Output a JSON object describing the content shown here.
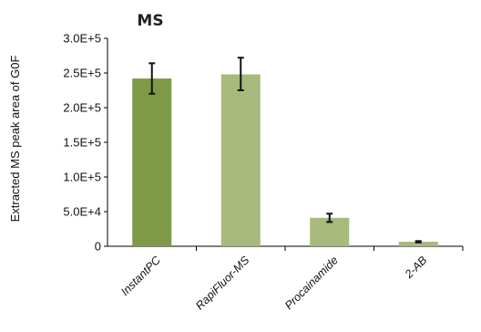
{
  "chart_data": {
    "type": "bar",
    "title": "MS",
    "ylabel": "Extracted MS peak area of G0F",
    "xlabel": "",
    "categories": [
      "InstantPC",
      "RapiFluor-MS",
      "Procainamide",
      "2-AB"
    ],
    "values": [
      242000,
      248000,
      41000,
      6500
    ],
    "error_low": [
      22000,
      23000,
      6000,
      1000
    ],
    "error_high": [
      22000,
      24000,
      6000,
      1000
    ],
    "colors": [
      "#7f9a47",
      "#a8b97c",
      "#a8b97c",
      "#a8b97c"
    ],
    "error_bar_color": "#111111",
    "ylim": [
      0,
      300000
    ],
    "yticks": [
      0,
      50000,
      100000,
      150000,
      200000,
      250000,
      300000
    ],
    "ytick_labels": [
      "0",
      "5.0E+4",
      "1.0E+5",
      "1.5E+5",
      "2.0E+5",
      "2.5E+5",
      "3.0E+5"
    ],
    "grid": false,
    "legend": "none"
  }
}
